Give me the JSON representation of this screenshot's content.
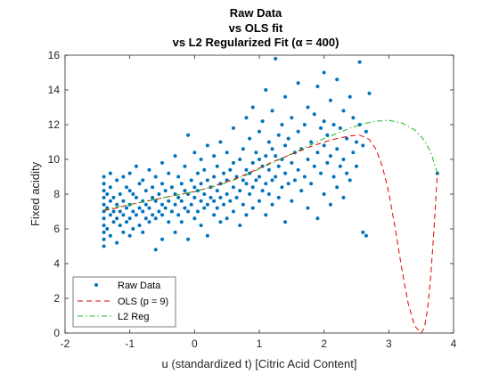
{
  "chart_data": {
    "type": "scatter",
    "title_lines": [
      "Raw Data",
      "vs OLS fit",
      "vs L2 Regularized Fit (α = 400)"
    ],
    "xlabel": "u (standardized t) [Citric Acid Content]",
    "ylabel": "Fixed acidity",
    "xlim": [
      -2,
      4
    ],
    "ylim": [
      0,
      16
    ],
    "xticks": [
      -2,
      -1,
      0,
      1,
      2,
      3,
      4
    ],
    "yticks": [
      0,
      2,
      4,
      6,
      8,
      10,
      12,
      14,
      16
    ],
    "grid": false,
    "legend_position": "bottom-left",
    "series": [
      {
        "name": "Raw Data",
        "kind": "scatter",
        "color": "#0072BD",
        "points": [
          [
            -1.4,
            5.0
          ],
          [
            -1.4,
            5.4
          ],
          [
            -1.4,
            5.8
          ],
          [
            -1.4,
            6.2
          ],
          [
            -1.4,
            6.6
          ],
          [
            -1.4,
            7.0
          ],
          [
            -1.4,
            7.4
          ],
          [
            -1.4,
            7.8
          ],
          [
            -1.4,
            8.2
          ],
          [
            -1.4,
            8.6
          ],
          [
            -1.4,
            9.0
          ],
          [
            -1.35,
            6.0
          ],
          [
            -1.35,
            7.2
          ],
          [
            -1.35,
            8.0
          ],
          [
            -1.3,
            5.6
          ],
          [
            -1.3,
            6.8
          ],
          [
            -1.3,
            7.6
          ],
          [
            -1.3,
            8.4
          ],
          [
            -1.3,
            9.2
          ],
          [
            -1.25,
            6.4
          ],
          [
            -1.25,
            7.0
          ],
          [
            -1.25,
            7.8
          ],
          [
            -1.2,
            5.2
          ],
          [
            -1.2,
            6.6
          ],
          [
            -1.2,
            7.4
          ],
          [
            -1.2,
            8.8
          ],
          [
            -1.15,
            6.2
          ],
          [
            -1.15,
            7.0
          ],
          [
            -1.15,
            8.0
          ],
          [
            -1.1,
            5.8
          ],
          [
            -1.1,
            6.8
          ],
          [
            -1.1,
            7.6
          ],
          [
            -1.1,
            9.0
          ],
          [
            -1.05,
            6.4
          ],
          [
            -1.05,
            7.2
          ],
          [
            -1.05,
            8.4
          ],
          [
            -1.0,
            5.6
          ],
          [
            -1.0,
            6.6
          ],
          [
            -1.0,
            7.4
          ],
          [
            -1.0,
            8.2
          ],
          [
            -1.0,
            9.2
          ],
          [
            -0.95,
            6.0
          ],
          [
            -0.95,
            7.0
          ],
          [
            -0.95,
            8.0
          ],
          [
            -0.9,
            6.8
          ],
          [
            -0.9,
            7.8
          ],
          [
            -0.9,
            9.6
          ],
          [
            -0.85,
            6.2
          ],
          [
            -0.85,
            7.2
          ],
          [
            -0.85,
            8.6
          ],
          [
            -0.8,
            5.8
          ],
          [
            -0.8,
            7.0
          ],
          [
            -0.8,
            7.6
          ],
          [
            -0.8,
            8.8
          ],
          [
            -0.75,
            6.6
          ],
          [
            -0.75,
            7.4
          ],
          [
            -0.75,
            8.2
          ],
          [
            -0.7,
            6.4
          ],
          [
            -0.7,
            7.2
          ],
          [
            -0.7,
            9.4
          ],
          [
            -0.65,
            6.8
          ],
          [
            -0.65,
            7.8
          ],
          [
            -0.65,
            8.4
          ],
          [
            -0.6,
            4.8
          ],
          [
            -0.6,
            6.6
          ],
          [
            -0.6,
            7.6
          ],
          [
            -0.6,
            9.0
          ],
          [
            -0.55,
            7.0
          ],
          [
            -0.55,
            8.0
          ],
          [
            -0.5,
            5.4
          ],
          [
            -0.5,
            6.8
          ],
          [
            -0.5,
            7.4
          ],
          [
            -0.5,
            8.6
          ],
          [
            -0.5,
            9.8
          ],
          [
            -0.45,
            7.2
          ],
          [
            -0.45,
            8.2
          ],
          [
            -0.4,
            6.4
          ],
          [
            -0.4,
            7.6
          ],
          [
            -0.4,
            9.2
          ],
          [
            -0.35,
            7.0
          ],
          [
            -0.35,
            8.4
          ],
          [
            -0.3,
            5.8
          ],
          [
            -0.3,
            7.4
          ],
          [
            -0.3,
            8.0
          ],
          [
            -0.3,
            10.2
          ],
          [
            -0.25,
            6.8
          ],
          [
            -0.25,
            7.8
          ],
          [
            -0.25,
            9.0
          ],
          [
            -0.2,
            6.4
          ],
          [
            -0.2,
            7.6
          ],
          [
            -0.2,
            8.6
          ],
          [
            -0.15,
            7.2
          ],
          [
            -0.15,
            8.2
          ],
          [
            -0.15,
            9.6
          ],
          [
            -0.1,
            5.4
          ],
          [
            -0.1,
            7.0
          ],
          [
            -0.1,
            8.0
          ],
          [
            -0.1,
            11.4
          ],
          [
            -0.05,
            7.4
          ],
          [
            -0.05,
            8.8
          ],
          [
            0.0,
            6.6
          ],
          [
            0.0,
            7.8
          ],
          [
            0.0,
            8.4
          ],
          [
            0.0,
            10.4
          ],
          [
            0.05,
            7.0
          ],
          [
            0.05,
            8.2
          ],
          [
            0.05,
            9.2
          ],
          [
            0.1,
            6.2
          ],
          [
            0.1,
            7.6
          ],
          [
            0.1,
            8.6
          ],
          [
            0.1,
            10.0
          ],
          [
            0.15,
            7.2
          ],
          [
            0.15,
            8.0
          ],
          [
            0.15,
            9.4
          ],
          [
            0.2,
            5.6
          ],
          [
            0.2,
            7.4
          ],
          [
            0.2,
            8.8
          ],
          [
            0.2,
            10.8
          ],
          [
            0.25,
            7.8
          ],
          [
            0.25,
            8.4
          ],
          [
            0.3,
            6.8
          ],
          [
            0.3,
            7.6
          ],
          [
            0.3,
            9.0
          ],
          [
            0.3,
            10.2
          ],
          [
            0.35,
            7.2
          ],
          [
            0.35,
            8.2
          ],
          [
            0.35,
            9.6
          ],
          [
            0.4,
            6.4
          ],
          [
            0.4,
            7.8
          ],
          [
            0.4,
            8.6
          ],
          [
            0.4,
            11.0
          ],
          [
            0.45,
            7.4
          ],
          [
            0.45,
            9.2
          ],
          [
            0.5,
            6.6
          ],
          [
            0.5,
            8.0
          ],
          [
            0.5,
            8.8
          ],
          [
            0.5,
            10.4
          ],
          [
            0.55,
            7.6
          ],
          [
            0.55,
            9.4
          ],
          [
            0.6,
            7.0
          ],
          [
            0.6,
            8.4
          ],
          [
            0.6,
            9.8
          ],
          [
            0.6,
            11.8
          ],
          [
            0.65,
            7.8
          ],
          [
            0.65,
            9.0
          ],
          [
            0.7,
            6.2
          ],
          [
            0.7,
            8.2
          ],
          [
            0.7,
            10.0
          ],
          [
            0.75,
            7.4
          ],
          [
            0.75,
            8.8
          ],
          [
            0.75,
            10.6
          ],
          [
            0.8,
            6.8
          ],
          [
            0.8,
            8.6
          ],
          [
            0.8,
            9.4
          ],
          [
            0.8,
            12.4
          ],
          [
            0.85,
            8.0
          ],
          [
            0.85,
            9.2
          ],
          [
            0.85,
            11.2
          ],
          [
            0.9,
            7.2
          ],
          [
            0.9,
            8.4
          ],
          [
            0.9,
            9.8
          ],
          [
            0.9,
            13.0
          ],
          [
            0.95,
            8.8
          ],
          [
            0.95,
            10.4
          ],
          [
            1.0,
            7.6
          ],
          [
            1.0,
            9.0
          ],
          [
            1.0,
            10.0
          ],
          [
            1.0,
            11.6
          ],
          [
            1.05,
            8.2
          ],
          [
            1.05,
            9.6
          ],
          [
            1.05,
            12.2
          ],
          [
            1.1,
            6.8
          ],
          [
            1.1,
            8.6
          ],
          [
            1.1,
            10.2
          ],
          [
            1.1,
            14.0
          ],
          [
            1.15,
            8.0
          ],
          [
            1.15,
            9.4
          ],
          [
            1.15,
            11.0
          ],
          [
            1.2,
            7.4
          ],
          [
            1.2,
            8.8
          ],
          [
            1.2,
            10.6
          ],
          [
            1.2,
            12.8
          ],
          [
            1.25,
            9.0
          ],
          [
            1.25,
            10.2
          ],
          [
            1.25,
            15.8
          ],
          [
            1.3,
            7.8
          ],
          [
            1.3,
            9.6
          ],
          [
            1.3,
            11.4
          ],
          [
            1.35,
            8.4
          ],
          [
            1.35,
            10.0
          ],
          [
            1.35,
            12.0
          ],
          [
            1.4,
            6.4
          ],
          [
            1.4,
            9.2
          ],
          [
            1.4,
            10.8
          ],
          [
            1.4,
            13.6
          ],
          [
            1.45,
            8.6
          ],
          [
            1.45,
            11.2
          ],
          [
            1.5,
            7.6
          ],
          [
            1.5,
            9.8
          ],
          [
            1.5,
            12.4
          ],
          [
            1.55,
            8.8
          ],
          [
            1.55,
            10.4
          ],
          [
            1.6,
            9.4
          ],
          [
            1.6,
            11.6
          ],
          [
            1.6,
            14.4
          ],
          [
            1.65,
            8.2
          ],
          [
            1.65,
            10.6
          ],
          [
            1.7,
            9.0
          ],
          [
            1.7,
            12.0
          ],
          [
            1.75,
            7.2
          ],
          [
            1.75,
            10.0
          ],
          [
            1.75,
            13.0
          ],
          [
            1.8,
            8.6
          ],
          [
            1.8,
            11.0
          ],
          [
            1.85,
            9.6
          ],
          [
            1.85,
            12.6
          ],
          [
            1.9,
            6.6
          ],
          [
            1.9,
            10.4
          ],
          [
            1.9,
            14.2
          ],
          [
            1.95,
            9.2
          ],
          [
            1.95,
            11.8
          ],
          [
            2.0,
            8.0
          ],
          [
            2.0,
            10.8
          ],
          [
            2.0,
            12.2
          ],
          [
            2.0,
            15.0
          ],
          [
            2.05,
            9.8
          ],
          [
            2.05,
            11.4
          ],
          [
            2.1,
            7.4
          ],
          [
            2.1,
            10.2
          ],
          [
            2.1,
            13.4
          ],
          [
            2.15,
            9.0
          ],
          [
            2.15,
            12.0
          ],
          [
            2.2,
            8.4
          ],
          [
            2.2,
            10.6
          ],
          [
            2.2,
            14.6
          ],
          [
            2.25,
            9.6
          ],
          [
            2.25,
            11.8
          ],
          [
            2.3,
            7.8
          ],
          [
            2.3,
            10.0
          ],
          [
            2.3,
            12.8
          ],
          [
            2.35,
            9.2
          ],
          [
            2.35,
            11.2
          ],
          [
            2.4,
            8.8
          ],
          [
            2.4,
            13.6
          ],
          [
            2.45,
            10.4
          ],
          [
            2.45,
            12.4
          ],
          [
            2.5,
            9.6
          ],
          [
            2.5,
            11.0
          ],
          [
            2.55,
            15.6
          ],
          [
            2.55,
            12.0
          ],
          [
            2.6,
            10.8
          ],
          [
            2.6,
            5.8
          ],
          [
            2.65,
            11.6
          ],
          [
            2.65,
            5.6
          ],
          [
            2.7,
            13.8
          ],
          [
            3.75,
            9.2
          ]
        ]
      },
      {
        "name": "OLS (p = 9)",
        "kind": "line",
        "color": "#E00000",
        "dash": "dashed",
        "points": [
          [
            -1.4,
            7.05
          ],
          [
            -1.2,
            7.2
          ],
          [
            -1.0,
            7.4
          ],
          [
            -0.8,
            7.55
          ],
          [
            -0.6,
            7.7
          ],
          [
            -0.4,
            7.85
          ],
          [
            -0.2,
            8.0
          ],
          [
            0.0,
            8.15
          ],
          [
            0.2,
            8.35
          ],
          [
            0.4,
            8.6
          ],
          [
            0.6,
            8.85
          ],
          [
            0.8,
            9.15
          ],
          [
            1.0,
            9.5
          ],
          [
            1.2,
            9.85
          ],
          [
            1.4,
            10.15
          ],
          [
            1.6,
            10.45
          ],
          [
            1.8,
            10.75
          ],
          [
            2.0,
            11.0
          ],
          [
            2.2,
            11.2
          ],
          [
            2.4,
            11.35
          ],
          [
            2.55,
            11.4
          ],
          [
            2.7,
            11.15
          ],
          [
            2.8,
            10.6
          ],
          [
            2.9,
            9.6
          ],
          [
            3.0,
            8.1
          ],
          [
            3.1,
            6.0
          ],
          [
            3.2,
            3.7
          ],
          [
            3.3,
            1.7
          ],
          [
            3.4,
            0.4
          ],
          [
            3.5,
            0.0
          ],
          [
            3.55,
            0.3
          ],
          [
            3.6,
            1.4
          ],
          [
            3.65,
            3.4
          ],
          [
            3.7,
            6.1
          ],
          [
            3.75,
            9.2
          ]
        ]
      },
      {
        "name": "L2 Reg",
        "kind": "line",
        "color": "#1DB51D",
        "dash": "dashdot",
        "points": [
          [
            -1.4,
            7.1
          ],
          [
            -1.2,
            7.25
          ],
          [
            -1.0,
            7.4
          ],
          [
            -0.8,
            7.55
          ],
          [
            -0.6,
            7.7
          ],
          [
            -0.4,
            7.85
          ],
          [
            -0.2,
            8.0
          ],
          [
            0.0,
            8.15
          ],
          [
            0.2,
            8.35
          ],
          [
            0.4,
            8.55
          ],
          [
            0.6,
            8.8
          ],
          [
            0.8,
            9.1
          ],
          [
            1.0,
            9.45
          ],
          [
            1.2,
            9.8
          ],
          [
            1.4,
            10.15
          ],
          [
            1.6,
            10.5
          ],
          [
            1.8,
            10.85
          ],
          [
            2.0,
            11.2
          ],
          [
            2.2,
            11.5
          ],
          [
            2.4,
            11.8
          ],
          [
            2.6,
            12.05
          ],
          [
            2.8,
            12.2
          ],
          [
            3.0,
            12.25
          ],
          [
            3.2,
            12.1
          ],
          [
            3.4,
            11.7
          ],
          [
            3.55,
            11.1
          ],
          [
            3.65,
            10.4
          ],
          [
            3.75,
            9.2
          ]
        ]
      }
    ]
  }
}
